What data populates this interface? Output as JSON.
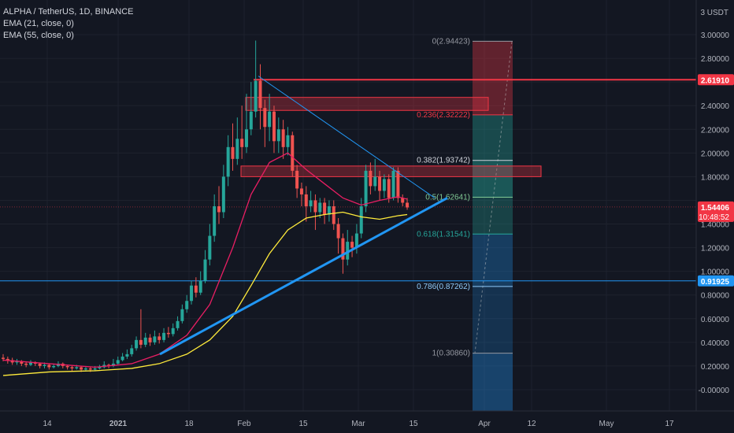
{
  "header": {
    "title": "ALPHA / TetherUS, 1D, BINANCE",
    "indicators": [
      "EMA (21, close, 0)",
      "EMA (55, close, 0)"
    ]
  },
  "colors": {
    "background": "#131722",
    "grid": "#1e222d",
    "up": "#26a69a",
    "down": "#ef5350",
    "ema21": "#e91e63",
    "ema55": "#ffeb3b",
    "trendline": "#2196f3",
    "resistance": "#f23645",
    "last_price_tag": "#f23645",
    "hline_tag": "#2196f3"
  },
  "price_axis": {
    "unit_label": "3 USDT",
    "ticks": [
      "3.00000",
      "2.80000",
      "2.60000",
      "2.40000",
      "2.20000",
      "2.00000",
      "1.80000",
      "1.60000",
      "1.40000",
      "1.20000",
      "1.00000",
      "0.80000",
      "0.60000",
      "0.40000",
      "0.20000",
      "-0.00000"
    ],
    "last_price": "1.54406",
    "countdown": "10:48:52",
    "resistance_tag": "2.61910",
    "support_tag": "0.91925"
  },
  "time_axis": {
    "labels": [
      "14",
      "2021",
      "18",
      "Feb",
      "15",
      "Mar",
      "15",
      "Apr",
      "12",
      "May",
      "17"
    ]
  },
  "fib_levels": [
    {
      "label": "0(2.94423)",
      "value": 2.94423
    },
    {
      "label": "0.236(2.32222)",
      "value": 2.32222
    },
    {
      "label": "0.382(1.93742)",
      "value": 1.93742
    },
    {
      "label": "0.5(1.62641)",
      "value": 1.62641
    },
    {
      "label": "0.618(1.31541)",
      "value": 1.31541
    },
    {
      "label": "0.786(0.87262)",
      "value": 0.87262
    },
    {
      "label": "1(0.30860)",
      "value": 0.3086
    }
  ],
  "chart_data": {
    "type": "candlestick",
    "symbol": "ALPHA / TetherUS",
    "interval": "1D",
    "exchange": "BINANCE",
    "ylim": [
      -0.15,
      3.15
    ],
    "x_labels": [
      "14",
      "2021",
      "18",
      "Feb",
      "15",
      "Mar",
      "15",
      "Apr",
      "12",
      "May",
      "17"
    ],
    "candles": [
      [
        0.27,
        0.26,
        0.3,
        0.24
      ],
      [
        0.26,
        0.25,
        0.28,
        0.22
      ],
      [
        0.25,
        0.23,
        0.27,
        0.21
      ],
      [
        0.23,
        0.24,
        0.26,
        0.21
      ],
      [
        0.24,
        0.22,
        0.25,
        0.2
      ],
      [
        0.22,
        0.21,
        0.24,
        0.19
      ],
      [
        0.21,
        0.23,
        0.25,
        0.2
      ],
      [
        0.23,
        0.22,
        0.24,
        0.2
      ],
      [
        0.22,
        0.2,
        0.23,
        0.18
      ],
      [
        0.2,
        0.21,
        0.23,
        0.18
      ],
      [
        0.21,
        0.19,
        0.22,
        0.17
      ],
      [
        0.19,
        0.2,
        0.22,
        0.18
      ],
      [
        0.2,
        0.22,
        0.24,
        0.19
      ],
      [
        0.22,
        0.2,
        0.23,
        0.18
      ],
      [
        0.2,
        0.19,
        0.21,
        0.17
      ],
      [
        0.19,
        0.18,
        0.2,
        0.16
      ],
      [
        0.18,
        0.19,
        0.21,
        0.17
      ],
      [
        0.19,
        0.17,
        0.2,
        0.15
      ],
      [
        0.17,
        0.18,
        0.2,
        0.16
      ],
      [
        0.18,
        0.17,
        0.19,
        0.15
      ],
      [
        0.17,
        0.18,
        0.2,
        0.16
      ],
      [
        0.18,
        0.19,
        0.21,
        0.17
      ],
      [
        0.19,
        0.21,
        0.24,
        0.18
      ],
      [
        0.21,
        0.2,
        0.22,
        0.18
      ],
      [
        0.2,
        0.22,
        0.26,
        0.19
      ],
      [
        0.22,
        0.25,
        0.28,
        0.21
      ],
      [
        0.25,
        0.28,
        0.31,
        0.24
      ],
      [
        0.28,
        0.3,
        0.34,
        0.26
      ],
      [
        0.3,
        0.35,
        0.38,
        0.28
      ],
      [
        0.35,
        0.42,
        0.45,
        0.33
      ],
      [
        0.42,
        0.38,
        0.68,
        0.35
      ],
      [
        0.38,
        0.44,
        0.48,
        0.36
      ],
      [
        0.44,
        0.4,
        0.47,
        0.37
      ],
      [
        0.4,
        0.45,
        0.5,
        0.38
      ],
      [
        0.45,
        0.42,
        0.48,
        0.39
      ],
      [
        0.42,
        0.48,
        0.52,
        0.4
      ],
      [
        0.48,
        0.47,
        0.53,
        0.44
      ],
      [
        0.47,
        0.52,
        0.56,
        0.45
      ],
      [
        0.52,
        0.58,
        0.62,
        0.5
      ],
      [
        0.58,
        0.68,
        0.72,
        0.56
      ],
      [
        0.68,
        0.75,
        0.8,
        0.65
      ],
      [
        0.75,
        0.88,
        0.92,
        0.72
      ],
      [
        0.88,
        0.82,
        0.95,
        0.78
      ],
      [
        0.82,
        0.92,
        1.0,
        0.8
      ],
      [
        0.92,
        1.1,
        1.18,
        0.9
      ],
      [
        1.1,
        1.3,
        1.4,
        1.05
      ],
      [
        1.3,
        1.55,
        1.65,
        1.25
      ],
      [
        1.55,
        1.5,
        1.72,
        1.4
      ],
      [
        1.5,
        1.8,
        1.9,
        1.45
      ],
      [
        1.8,
        2.05,
        2.15,
        1.72
      ],
      [
        2.05,
        1.95,
        2.25,
        1.85
      ],
      [
        1.95,
        2.12,
        2.3,
        1.9
      ],
      [
        2.12,
        2.05,
        2.4,
        1.95
      ],
      [
        2.05,
        2.2,
        2.5,
        2.0
      ],
      [
        2.2,
        2.35,
        2.6,
        2.15
      ],
      [
        2.35,
        2.61,
        2.95,
        2.3
      ],
      [
        2.61,
        2.38,
        2.75,
        2.2
      ],
      [
        2.38,
        2.22,
        2.45,
        2.05
      ],
      [
        2.22,
        2.35,
        2.5,
        2.1
      ],
      [
        2.35,
        2.1,
        2.4,
        2.0
      ],
      [
        2.1,
        2.2,
        2.3,
        2.0
      ],
      [
        2.2,
        2.05,
        2.28,
        1.95
      ],
      [
        2.05,
        2.15,
        2.22,
        1.98
      ],
      [
        2.15,
        1.85,
        2.18,
        1.8
      ],
      [
        1.85,
        1.7,
        1.9,
        1.62
      ],
      [
        1.7,
        1.65,
        1.75,
        1.55
      ],
      [
        1.65,
        1.55,
        1.72,
        1.42
      ],
      [
        1.55,
        1.6,
        1.68,
        1.5
      ],
      [
        1.6,
        1.5,
        1.65,
        1.35
      ],
      [
        1.5,
        1.58,
        1.62,
        1.45
      ],
      [
        1.58,
        1.48,
        1.62,
        1.4
      ],
      [
        1.48,
        1.55,
        1.6,
        1.42
      ],
      [
        1.55,
        1.4,
        1.6,
        1.35
      ],
      [
        1.4,
        1.28,
        1.45,
        1.15
      ],
      [
        1.28,
        1.1,
        1.32,
        0.98
      ],
      [
        1.1,
        1.25,
        1.35,
        1.05
      ],
      [
        1.25,
        1.2,
        1.3,
        1.12
      ],
      [
        1.2,
        1.32,
        1.4,
        1.15
      ],
      [
        1.32,
        1.55,
        1.62,
        1.28
      ],
      [
        1.55,
        1.85,
        1.9,
        1.5
      ],
      [
        1.85,
        1.72,
        1.92,
        1.65
      ],
      [
        1.72,
        1.8,
        1.95,
        1.68
      ],
      [
        1.8,
        1.68,
        1.85,
        1.6
      ],
      [
        1.68,
        1.78,
        1.82,
        1.62
      ],
      [
        1.78,
        1.62,
        1.82,
        1.58
      ],
      [
        1.62,
        1.85,
        1.88,
        1.6
      ],
      [
        1.85,
        1.62,
        1.88,
        1.58
      ],
      [
        1.62,
        1.58,
        1.65,
        1.55
      ],
      [
        1.58,
        1.54,
        1.62,
        1.52
      ]
    ],
    "ema21": [
      [
        0,
        0.25
      ],
      [
        10,
        0.22
      ],
      [
        20,
        0.19
      ],
      [
        28,
        0.22
      ],
      [
        34,
        0.3
      ],
      [
        40,
        0.46
      ],
      [
        45,
        0.72
      ],
      [
        50,
        1.2
      ],
      [
        54,
        1.65
      ],
      [
        58,
        1.92
      ],
      [
        62,
        2.0
      ],
      [
        66,
        1.86
      ],
      [
        70,
        1.74
      ],
      [
        74,
        1.62
      ],
      [
        78,
        1.56
      ],
      [
        82,
        1.6
      ],
      [
        86,
        1.63
      ],
      [
        88,
        1.61
      ]
    ],
    "ema55": [
      [
        0,
        0.12
      ],
      [
        10,
        0.15
      ],
      [
        20,
        0.16
      ],
      [
        28,
        0.18
      ],
      [
        34,
        0.22
      ],
      [
        40,
        0.3
      ],
      [
        45,
        0.42
      ],
      [
        50,
        0.62
      ],
      [
        54,
        0.88
      ],
      [
        58,
        1.15
      ],
      [
        62,
        1.35
      ],
      [
        66,
        1.45
      ],
      [
        70,
        1.48
      ],
      [
        74,
        1.5
      ],
      [
        78,
        1.46
      ],
      [
        82,
        1.44
      ],
      [
        86,
        1.47
      ],
      [
        88,
        1.48
      ]
    ]
  }
}
